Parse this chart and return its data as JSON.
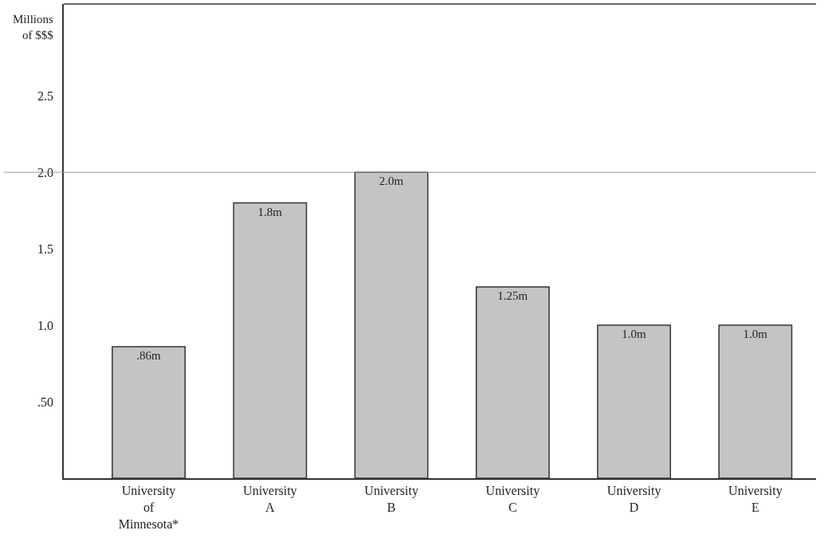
{
  "chart_data": {
    "type": "bar",
    "ylabel": "Millions of $$$",
    "categories": [
      "University of Minnesota*",
      "University A",
      "University B",
      "University C",
      "University D",
      "University E"
    ],
    "values": [
      0.86,
      1.8,
      2.0,
      1.25,
      1.0,
      1.0
    ],
    "value_labels": [
      ".86m",
      "1.8m",
      "2.0m",
      "1.25m",
      "1.0m",
      "1.0m"
    ],
    "color": "#c4c4c4",
    "ylim": [
      0,
      3.1
    ],
    "yticks": [
      {
        "value": 0.5,
        "label": ".50"
      },
      {
        "value": 1.0,
        "label": "1.0"
      },
      {
        "value": 1.5,
        "label": "1.5"
      },
      {
        "value": 2.0,
        "label": "2.0"
      },
      {
        "value": 2.5,
        "label": "2.5"
      }
    ],
    "ref_lines": [
      {
        "axis": "y",
        "value": 2.0,
        "label": null,
        "color": "#999999"
      }
    ]
  }
}
